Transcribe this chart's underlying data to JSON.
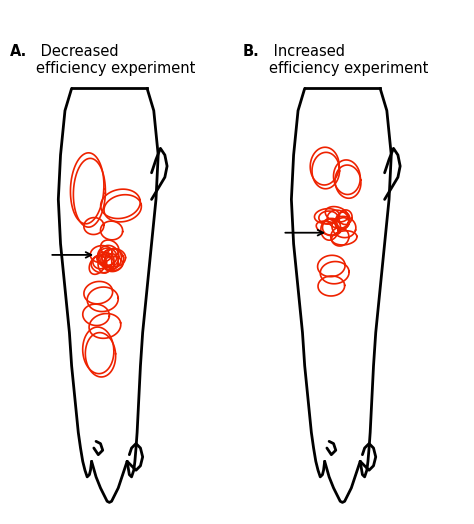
{
  "bg_color": "#ffffff",
  "leg_color": "#000000",
  "pain_color": "#ee2200",
  "lw_leg": 2.0,
  "lw_pain": 1.2,
  "title_A_bold": "A.",
  "title_A_normal": " Decreased\nefficiency experiment",
  "title_B_bold": "B.",
  "title_B_normal": " Increased\nefficiency experiment"
}
